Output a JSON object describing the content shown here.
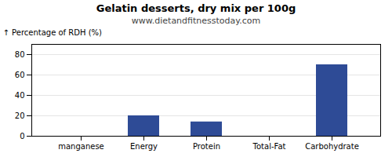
{
  "chart_data": {
    "type": "bar",
    "title": "Gelatin desserts, dry mix per 100g",
    "subtitle": "www.dietandfitnesstoday.com",
    "categories": [
      "manganese",
      "Energy",
      "Protein",
      "Total-Fat",
      "Carbohydrate"
    ],
    "values": [
      0,
      20,
      14,
      0,
      70
    ],
    "color": "#2e4b96",
    "ylabel": "Percentage of RDH (%)",
    "ylim": [
      0,
      90
    ],
    "yticks": [
      0,
      20,
      40,
      60,
      80
    ],
    "grid": true
  }
}
